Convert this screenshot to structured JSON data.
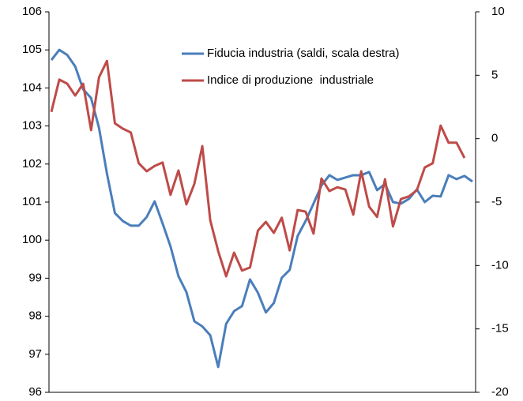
{
  "chart_data": {
    "type": "line",
    "categories": [
      null,
      null,
      null,
      null,
      null,
      null,
      null,
      null,
      null,
      null,
      null,
      null,
      null,
      null,
      null,
      null,
      null,
      null,
      null,
      null,
      null,
      null,
      null,
      null,
      null,
      null,
      null,
      null,
      null,
      null,
      null,
      null,
      null,
      null,
      null,
      null,
      null,
      null,
      null,
      null,
      null,
      null,
      null,
      null,
      null,
      null,
      null,
      null,
      null,
      null,
      null,
      null,
      null,
      null
    ],
    "series": [
      {
        "name": "Fiducia industria (saldi, scala destra)",
        "color": "#4a7ebb",
        "axis": "y2",
        "values": [
          6.2,
          7.0,
          6.6,
          5.7,
          3.9,
          3.2,
          0.85,
          -2.76,
          -5.87,
          -6.5,
          -6.86,
          -6.86,
          -6.18,
          -4.94,
          -6.68,
          -8.5,
          -10.85,
          -12.1,
          -14.4,
          -14.8,
          -15.5,
          -18.0,
          -14.6,
          -13.6,
          -13.2,
          -11.1,
          -12.15,
          -13.7,
          -12.96,
          -10.97,
          -10.35,
          -7.67,
          -6.49,
          -5.12,
          -3.69,
          -2.88,
          -3.25,
          -3.07,
          -2.88,
          -2.88,
          -2.63,
          -4.06,
          -3.57,
          -5.0,
          -5.12,
          -4.75,
          -4.0,
          -5.0,
          -4.5,
          -4.56,
          -2.88,
          -3.19,
          -2.94,
          -3.38
        ]
      },
      {
        "name": "Indice di produzione  industriale",
        "color": "#be4b48",
        "values": [
          103.37,
          104.22,
          104.11,
          103.8,
          104.11,
          102.89,
          104.28,
          104.71,
          103.07,
          102.93,
          102.83,
          102.02,
          101.81,
          101.95,
          102.04,
          101.19,
          101.83,
          100.94,
          101.48,
          102.47,
          100.52,
          99.71,
          99.05,
          99.67,
          99.2,
          99.28,
          100.25,
          100.48,
          100.19,
          100.59,
          99.73,
          100.79,
          100.75,
          100.17,
          101.62,
          101.29,
          101.39,
          101.33,
          100.67,
          101.81,
          100.88,
          100.61,
          101.6,
          100.36,
          101.08,
          101.15,
          101.31,
          101.91,
          102.02,
          103.01,
          102.56,
          102.56,
          102.16,
          null
        ]
      }
    ],
    "ylim": [
      96,
      106
    ],
    "yticks": [
      96,
      97,
      98,
      99,
      100,
      101,
      102,
      103,
      104,
      105,
      106
    ],
    "y2lim": [
      -20,
      10
    ],
    "y2ticks": [
      -20,
      -15,
      -10,
      -5,
      0,
      5,
      10
    ],
    "grid": false,
    "legend": "upper right"
  }
}
